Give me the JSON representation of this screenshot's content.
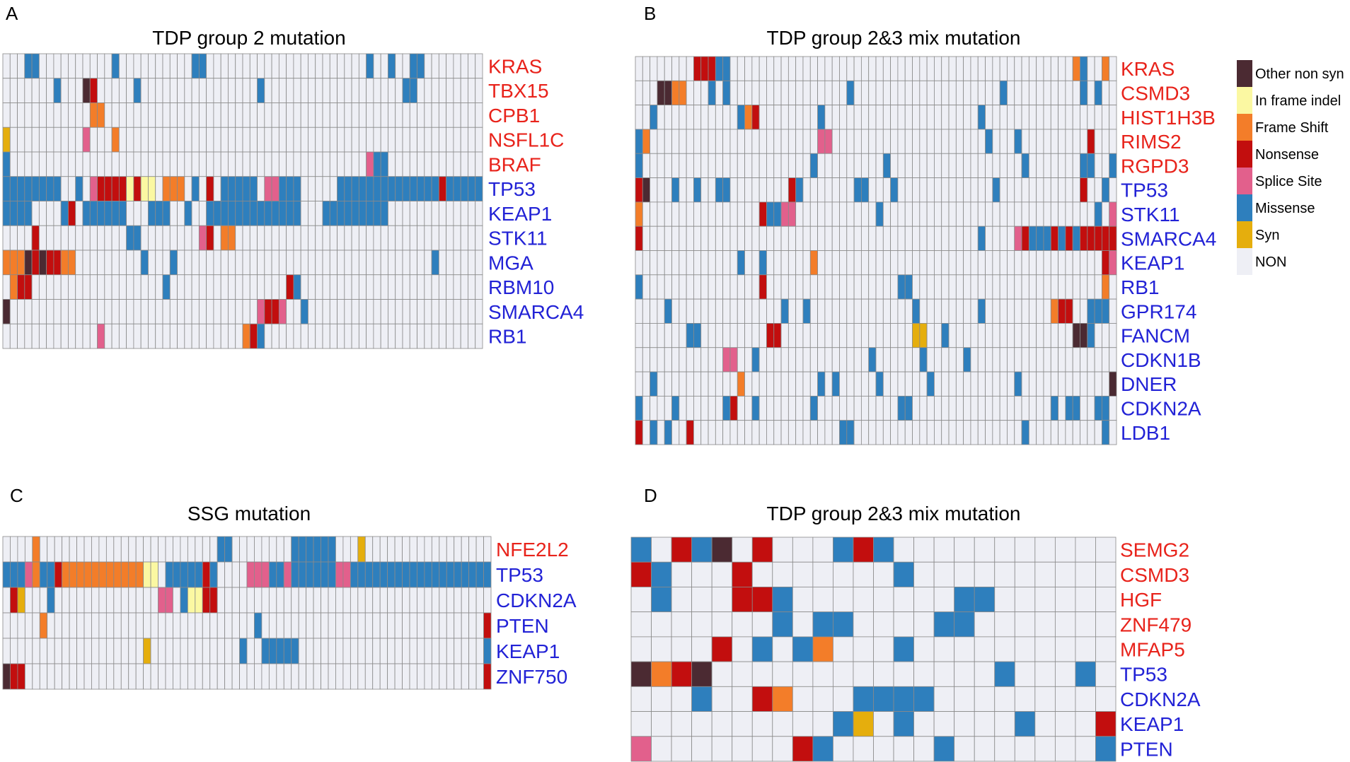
{
  "colors": {
    "Other non syn": "#4b2a32",
    "In frame indel": "#fbf8a2",
    "Frame Shift": "#f37d29",
    "Nonsense": "#c20e0e",
    "Splice Site": "#e2608c",
    "Missense": "#2e7fbd",
    "Syn": "#e5ae0d",
    "NON": "#eeeff5",
    "grid": "#8a8a8a",
    "gene_red": "#e8231b",
    "gene_blue": "#2222d6"
  },
  "legend": [
    "Other non syn",
    "In frame indel",
    "Frame Shift",
    "Nonsense",
    "Splice Site",
    "Missense",
    "Syn",
    "NON"
  ],
  "chart_data": [
    {
      "type": "heatmap",
      "panel": "A",
      "title": "TDP group 2 mutation",
      "n_samples": 66,
      "codes": {
        "O": "Other non syn",
        "I": "In frame indel",
        "F": "Frame Shift",
        "N": "Nonsense",
        "S": "Splice Site",
        "M": "Missense",
        "Y": "Syn"
      },
      "genes": [
        {
          "name": "KRAS",
          "color": "red",
          "mut": {
            "3": "M",
            "4": "M",
            "15": "M",
            "26": "M",
            "27": "M",
            "50": "M",
            "53": "M",
            "56": "M",
            "57": "M"
          }
        },
        {
          "name": "TBX15",
          "color": "red",
          "mut": {
            "7": "M",
            "11": "O",
            "12": "N",
            "18": "M",
            "35": "M",
            "55": "M",
            "56": "M"
          }
        },
        {
          "name": "CPB1",
          "color": "red",
          "mut": {
            "12": "F",
            "13": "F"
          }
        },
        {
          "name": "NSFL1C",
          "color": "red",
          "mut": {
            "0": "Y",
            "11": "S",
            "15": "F"
          }
        },
        {
          "name": "BRAF",
          "color": "red",
          "mut": {
            "0": "M",
            "50": "S",
            "51": "M",
            "52": "M"
          }
        },
        {
          "name": "TP53",
          "color": "blue",
          "mut": {
            "0": "M",
            "1": "M",
            "2": "M",
            "3": "M",
            "4": "M",
            "5": "M",
            "6": "M",
            "7": "M",
            "10": "M",
            "12": "S",
            "13": "N",
            "14": "N",
            "15": "N",
            "16": "N",
            "17": "I",
            "18": "N",
            "19": "I",
            "20": "I",
            "22": "F",
            "23": "F",
            "24": "F",
            "26": "M",
            "28": "N",
            "30": "M",
            "31": "M",
            "32": "M",
            "33": "M",
            "34": "M",
            "36": "S",
            "37": "S",
            "38": "M",
            "39": "M",
            "40": "M",
            "46": "M",
            "47": "M",
            "48": "M",
            "49": "M",
            "50": "M",
            "51": "M",
            "52": "M",
            "53": "M",
            "54": "M",
            "55": "M",
            "56": "M",
            "57": "M",
            "58": "M",
            "59": "M",
            "60": "N",
            "61": "M",
            "62": "M",
            "63": "M",
            "64": "M",
            "65": "M"
          }
        },
        {
          "name": "KEAP1",
          "color": "blue",
          "mut": {
            "0": "M",
            "1": "M",
            "2": "M",
            "3": "M",
            "8": "M",
            "9": "N",
            "11": "M",
            "12": "M",
            "13": "M",
            "14": "M",
            "15": "M",
            "16": "M",
            "20": "M",
            "21": "M",
            "22": "M",
            "25": "M",
            "28": "M",
            "29": "M",
            "30": "M",
            "31": "M",
            "32": "M",
            "33": "M",
            "34": "M",
            "35": "M",
            "36": "M",
            "37": "M",
            "38": "M",
            "39": "M",
            "40": "M",
            "44": "M",
            "45": "M",
            "46": "M",
            "47": "M",
            "48": "M",
            "49": "M",
            "50": "M",
            "51": "M",
            "52": "M"
          }
        },
        {
          "name": "STK11",
          "color": "blue",
          "mut": {
            "4": "N",
            "17": "M",
            "18": "M",
            "27": "S",
            "28": "N",
            "30": "F",
            "31": "F"
          }
        },
        {
          "name": "MGA",
          "color": "blue",
          "mut": {
            "0": "F",
            "1": "F",
            "2": "F",
            "3": "O",
            "4": "N",
            "5": "O",
            "6": "N",
            "7": "N",
            "8": "F",
            "9": "F",
            "19": "M",
            "23": "M",
            "59": "M"
          }
        },
        {
          "name": "RBM10",
          "color": "blue",
          "mut": {
            "1": "F",
            "2": "N",
            "3": "N",
            "22": "M",
            "39": "N",
            "40": "M"
          }
        },
        {
          "name": "SMARCA4",
          "color": "blue",
          "mut": {
            "0": "O",
            "35": "S",
            "36": "N",
            "37": "N",
            "38": "S",
            "41": "M"
          }
        },
        {
          "name": "RB1",
          "color": "blue",
          "mut": {
            "13": "S",
            "33": "F",
            "34": "N",
            "35": "M"
          }
        }
      ]
    },
    {
      "type": "heatmap",
      "panel": "B",
      "title": "TDP group 2&3 mix mutation",
      "n_samples": 66,
      "codes": {
        "O": "Other non syn",
        "I": "In frame indel",
        "F": "Frame Shift",
        "N": "Nonsense",
        "S": "Splice Site",
        "M": "Missense",
        "Y": "Syn"
      },
      "genes": [
        {
          "name": "KRAS",
          "color": "red",
          "mut": {
            "8": "N",
            "9": "N",
            "10": "N",
            "11": "M",
            "12": "M",
            "60": "F",
            "61": "M",
            "64": "F"
          }
        },
        {
          "name": "CSMD3",
          "color": "red",
          "mut": {
            "3": "O",
            "4": "O",
            "5": "F",
            "6": "F",
            "10": "M",
            "12": "M",
            "29": "M",
            "50": "M",
            "61": "M",
            "63": "M"
          }
        },
        {
          "name": "HIST1H3B",
          "color": "red",
          "mut": {
            "2": "M",
            "14": "M",
            "15": "F",
            "16": "N",
            "25": "M",
            "47": "M"
          }
        },
        {
          "name": "RIMS2",
          "color": "red",
          "mut": {
            "0": "M",
            "1": "F",
            "25": "S",
            "26": "S",
            "48": "M",
            "52": "M",
            "62": "N"
          }
        },
        {
          "name": "RGPD3",
          "color": "red",
          "mut": {
            "0": "M",
            "24": "M",
            "34": "M",
            "53": "M",
            "61": "M",
            "62": "M",
            "65": "M"
          }
        },
        {
          "name": "TP53",
          "color": "blue",
          "mut": {
            "0": "N",
            "1": "O",
            "5": "M",
            "8": "M",
            "11": "M",
            "12": "M",
            "21": "N",
            "22": "M",
            "30": "M",
            "31": "M",
            "35": "M",
            "49": "M",
            "61": "N",
            "64": "M"
          }
        },
        {
          "name": "STK11",
          "color": "blue",
          "mut": {
            "0": "F",
            "17": "N",
            "18": "M",
            "19": "M",
            "20": "S",
            "21": "S",
            "33": "M",
            "63": "M",
            "65": "S"
          }
        },
        {
          "name": "SMARCA4",
          "color": "blue",
          "mut": {
            "0": "N",
            "47": "M",
            "52": "S",
            "53": "N",
            "54": "M",
            "55": "M",
            "56": "M",
            "57": "N",
            "58": "M",
            "59": "N",
            "60": "M",
            "61": "N",
            "62": "N",
            "63": "N",
            "64": "N",
            "65": "N"
          }
        },
        {
          "name": "KEAP1",
          "color": "blue",
          "mut": {
            "14": "M",
            "17": "M",
            "24": "F",
            "64": "N",
            "65": "S"
          }
        },
        {
          "name": "RB1",
          "color": "blue",
          "mut": {
            "0": "M",
            "17": "N",
            "36": "M",
            "37": "M",
            "64": "F"
          }
        },
        {
          "name": "GPR174",
          "color": "blue",
          "mut": {
            "4": "M",
            "20": "M",
            "23": "M",
            "38": "M",
            "47": "M",
            "57": "F",
            "58": "N",
            "59": "N",
            "62": "M",
            "63": "M",
            "64": "M"
          }
        },
        {
          "name": "FANCM",
          "color": "blue",
          "mut": {
            "7": "M",
            "8": "M",
            "18": "N",
            "19": "N",
            "38": "Y",
            "39": "Y",
            "42": "M",
            "60": "O",
            "61": "O",
            "62": "M"
          }
        },
        {
          "name": "CDKN1B",
          "color": "blue",
          "mut": {
            "12": "S",
            "13": "S",
            "16": "M",
            "32": "M",
            "39": "M",
            "45": "M"
          }
        },
        {
          "name": "DNER",
          "color": "blue",
          "mut": {
            "2": "M",
            "14": "F",
            "25": "M",
            "27": "M",
            "33": "M",
            "40": "M",
            "52": "M",
            "65": "O"
          }
        },
        {
          "name": "CDKN2A",
          "color": "blue",
          "mut": {
            "0": "M",
            "5": "M",
            "12": "M",
            "13": "N",
            "16": "M",
            "24": "M",
            "36": "M",
            "37": "M",
            "57": "M",
            "59": "M",
            "60": "M",
            "63": "M",
            "64": "M"
          }
        },
        {
          "name": "LDB1",
          "color": "blue",
          "mut": {
            "0": "N",
            "2": "M",
            "4": "M",
            "7": "N",
            "28": "M",
            "29": "M",
            "53": "M",
            "64": "M"
          }
        }
      ]
    },
    {
      "type": "heatmap",
      "panel": "C",
      "title": "SSG mutation",
      "n_samples": 66,
      "codes": {
        "O": "Other non syn",
        "I": "In frame indel",
        "F": "Frame Shift",
        "N": "Nonsense",
        "S": "Splice Site",
        "M": "Missense",
        "Y": "Syn"
      },
      "genes": [
        {
          "name": "NFE2L2",
          "color": "red",
          "mut": {
            "4": "F",
            "29": "M",
            "30": "M",
            "39": "M",
            "40": "M",
            "41": "M",
            "42": "M",
            "43": "M",
            "44": "M",
            "48": "Y"
          }
        },
        {
          "name": "TP53",
          "color": "blue",
          "mut": {
            "0": "M",
            "1": "M",
            "2": "M",
            "3": "S",
            "4": "F",
            "5": "M",
            "6": "M",
            "7": "N",
            "8": "F",
            "9": "F",
            "10": "F",
            "11": "F",
            "12": "F",
            "13": "F",
            "14": "F",
            "15": "F",
            "16": "F",
            "17": "F",
            "18": "F",
            "19": "I",
            "20": "I",
            "22": "M",
            "23": "M",
            "24": "M",
            "25": "M",
            "26": "M",
            "27": "N",
            "28": "M",
            "33": "S",
            "34": "S",
            "35": "S",
            "36": "M",
            "37": "M",
            "38": "S",
            "39": "M",
            "40": "M",
            "41": "M",
            "42": "M",
            "43": "M",
            "44": "M",
            "45": "S",
            "46": "S",
            "47": "M",
            "48": "M",
            "49": "M",
            "50": "M",
            "51": "M",
            "52": "M",
            "53": "M",
            "54": "M",
            "55": "M",
            "56": "M",
            "57": "M",
            "58": "M",
            "59": "M",
            "60": "M",
            "61": "M",
            "62": "M",
            "63": "M",
            "64": "M",
            "65": "M"
          }
        },
        {
          "name": "CDKN2A",
          "color": "blue",
          "mut": {
            "1": "N",
            "2": "Y",
            "6": "M",
            "21": "S",
            "22": "S",
            "24": "M",
            "25": "I",
            "26": "I",
            "27": "N",
            "28": "N"
          }
        },
        {
          "name": "PTEN",
          "color": "blue",
          "mut": {
            "5": "F",
            "34": "M",
            "65": "N"
          }
        },
        {
          "name": "KEAP1",
          "color": "blue",
          "mut": {
            "19": "Y",
            "32": "M",
            "35": "M",
            "36": "M",
            "37": "M",
            "38": "M",
            "39": "M",
            "65": "M"
          }
        },
        {
          "name": "ZNF750",
          "color": "blue",
          "mut": {
            "0": "O",
            "1": "N",
            "2": "N",
            "65": "N"
          }
        }
      ]
    },
    {
      "type": "heatmap",
      "panel": "D",
      "title": "TDP group 2&3 mix mutation",
      "n_samples": 24,
      "codes": {
        "O": "Other non syn",
        "I": "In frame indel",
        "F": "Frame Shift",
        "N": "Nonsense",
        "S": "Splice Site",
        "M": "Missense",
        "Y": "Syn"
      },
      "genes": [
        {
          "name": "SEMG2",
          "color": "red",
          "mut": {
            "0": "M",
            "2": "N",
            "3": "M",
            "4": "O",
            "6": "N",
            "10": "M",
            "11": "N",
            "12": "M"
          }
        },
        {
          "name": "CSMD3",
          "color": "red",
          "mut": {
            "0": "N",
            "1": "M",
            "5": "N",
            "13": "M"
          }
        },
        {
          "name": "HGF",
          "color": "red",
          "mut": {
            "1": "M",
            "5": "N",
            "6": "N",
            "7": "M",
            "16": "M",
            "17": "M"
          }
        },
        {
          "name": "ZNF479",
          "color": "red",
          "mut": {
            "7": "M",
            "9": "M",
            "10": "M",
            "15": "M",
            "16": "M"
          }
        },
        {
          "name": "MFAP5",
          "color": "red",
          "mut": {
            "4": "N",
            "6": "M",
            "8": "M",
            "9": "F",
            "13": "M"
          }
        },
        {
          "name": "TP53",
          "color": "blue",
          "mut": {
            "0": "O",
            "1": "F",
            "2": "N",
            "3": "O",
            "18": "M",
            "22": "M"
          }
        },
        {
          "name": "CDKN2A",
          "color": "blue",
          "mut": {
            "3": "M",
            "6": "N",
            "7": "F",
            "11": "M",
            "12": "M",
            "13": "M",
            "14": "M"
          }
        },
        {
          "name": "KEAP1",
          "color": "blue",
          "mut": {
            "10": "M",
            "11": "Y",
            "13": "M",
            "19": "M",
            "23": "N"
          }
        },
        {
          "name": "PTEN",
          "color": "blue",
          "mut": {
            "0": "S",
            "8": "N",
            "9": "M",
            "15": "M",
            "23": "M"
          }
        }
      ]
    }
  ]
}
